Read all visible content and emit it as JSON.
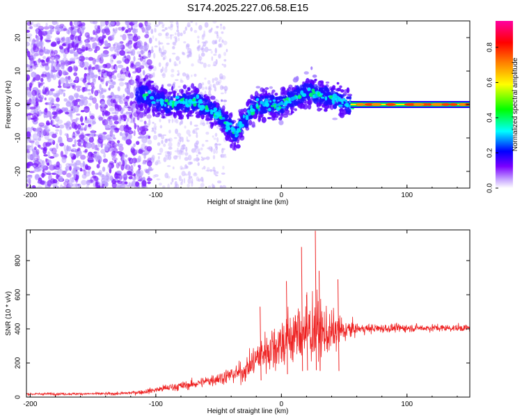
{
  "title": "S174.2025.227.06.58.E15",
  "chart_data": [
    {
      "type": "heatmap",
      "name": "spectrogram",
      "xlabel": "Height of straight line (km)",
      "ylabel": "Frequency (Hz)",
      "xlim": [
        -203,
        150
      ],
      "ylim": [
        -25,
        25
      ],
      "xticks": [
        -200,
        -100,
        0,
        100
      ],
      "yticks": [
        -20,
        -10,
        0,
        10,
        20
      ],
      "colorbar": {
        "label": "Normalized spectral amplitude",
        "range": [
          0.0,
          0.95
        ],
        "ticks": [
          0.0,
          0.2,
          0.4,
          0.6,
          0.8
        ],
        "tick_labels": [
          "0.0",
          "0.2",
          "0.4",
          "0.6",
          "0.8"
        ],
        "colors": [
          "#ffffff",
          "#7b00ff",
          "#0000ff",
          "#00ffff",
          "#00ff00",
          "#ffff00",
          "#ff8000",
          "#ff0000",
          "#ff00a0"
        ]
      },
      "ridge": [
        {
          "x": -110,
          "y": 3
        },
        {
          "x": -90,
          "y": 0
        },
        {
          "x": -70,
          "y": 1
        },
        {
          "x": -50,
          "y": -3
        },
        {
          "x": -37,
          "y": -9
        },
        {
          "x": -20,
          "y": 0
        },
        {
          "x": 0,
          "y": 0
        },
        {
          "x": 20,
          "y": 4
        },
        {
          "x": 40,
          "y": 2
        },
        {
          "x": 55,
          "y": 0
        },
        {
          "x": 150,
          "y": 0
        }
      ]
    },
    {
      "type": "line",
      "name": "snr",
      "xlabel": "Height of straight line (km)",
      "ylabel": "SNR (10 * v/v)",
      "xlim": [
        -203,
        150
      ],
      "ylim": [
        0,
        980
      ],
      "xticks": [
        -200,
        -100,
        0,
        100
      ],
      "yticks": [
        0,
        200,
        400,
        600,
        800
      ],
      "color": "#ee2222",
      "envelope": [
        {
          "x": -203,
          "mean": 18,
          "spread": 10
        },
        {
          "x": -130,
          "mean": 20,
          "spread": 12
        },
        {
          "x": -110,
          "mean": 30,
          "spread": 20
        },
        {
          "x": -90,
          "mean": 55,
          "spread": 35
        },
        {
          "x": -70,
          "mean": 75,
          "spread": 40
        },
        {
          "x": -50,
          "mean": 110,
          "spread": 60
        },
        {
          "x": -30,
          "mean": 150,
          "spread": 90
        },
        {
          "x": -15,
          "mean": 260,
          "spread": 180
        },
        {
          "x": 0,
          "mean": 320,
          "spread": 250
        },
        {
          "x": 15,
          "mean": 380,
          "spread": 280
        },
        {
          "x": 25,
          "mean": 400,
          "spread": 320
        },
        {
          "x": 35,
          "mean": 370,
          "spread": 220
        },
        {
          "x": 50,
          "mean": 390,
          "spread": 120
        },
        {
          "x": 60,
          "mean": 400,
          "spread": 45
        },
        {
          "x": 100,
          "mean": 405,
          "spread": 35
        },
        {
          "x": 150,
          "mean": 405,
          "spread": 30
        }
      ],
      "peaks": [
        {
          "x": 16,
          "y": 880
        },
        {
          "x": 27,
          "y": 975
        },
        {
          "x": 30,
          "y": 740
        },
        {
          "x": 4,
          "y": 680
        },
        {
          "x": -17,
          "y": 530
        },
        {
          "x": 45,
          "y": 690
        },
        {
          "x": 20,
          "y": 600
        }
      ]
    }
  ]
}
